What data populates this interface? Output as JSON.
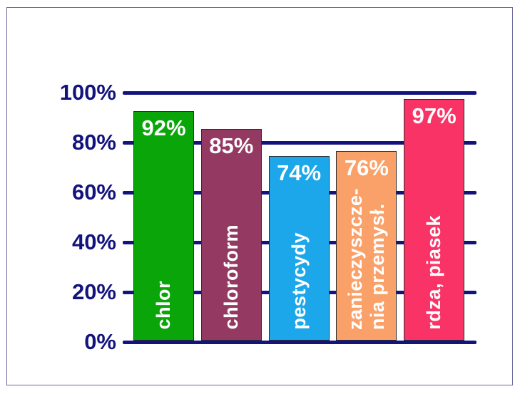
{
  "frame": {
    "border_color": "#6A6A9C",
    "background": "#ffffff"
  },
  "axis": {
    "tick_label_color": "#13137E",
    "grid_color": "#13137E",
    "tick_labels": [
      "0%",
      "20%",
      "40%",
      "60%",
      "80%",
      "100%"
    ]
  },
  "chart_data": {
    "type": "bar",
    "title": "",
    "xlabel": "",
    "ylabel": "",
    "ylim": [
      0,
      100
    ],
    "grid": true,
    "legend_position": "none",
    "categories": [
      "chlor",
      "chloroform",
      "pestycydy",
      "zanieczyszcze-\nnia przemysł.",
      "rdza, piasek"
    ],
    "values": [
      92,
      85,
      74,
      76,
      97
    ],
    "value_labels": [
      "92%",
      "85%",
      "74%",
      "76%",
      "97%"
    ],
    "bar_colors": [
      "#09A509",
      "#943A62",
      "#1BA7EA",
      "#FAA169",
      "#FA3366"
    ],
    "bar_label_color": "#ffffff",
    "bar_border_color": "#2E2E2E"
  }
}
